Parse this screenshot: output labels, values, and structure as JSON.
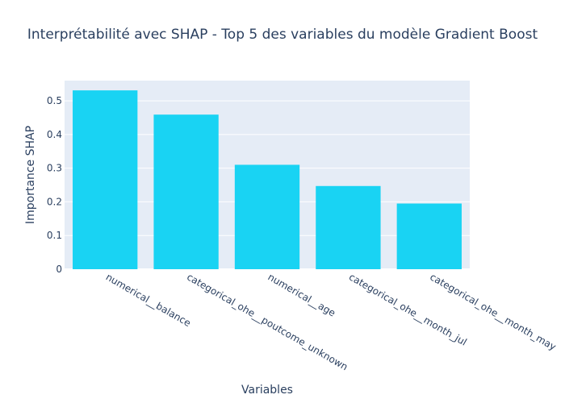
{
  "chart_data": {
    "type": "bar",
    "title": "Interprétabilité avec SHAP - Top 5 des variables du modèle Gradient Boost",
    "xlabel": "Variables",
    "ylabel": "Importance SHAP",
    "categories": [
      "numerical__balance",
      "categorical_ohe__poutcome_unknown",
      "numerical__age",
      "categorical_ohe__month_jul",
      "categorical_ohe__month_may"
    ],
    "values": [
      0.531,
      0.459,
      0.31,
      0.247,
      0.195
    ],
    "ylim": [
      0,
      0.56
    ],
    "yticks": [
      0,
      0.1,
      0.2,
      0.3,
      0.4,
      0.5
    ],
    "ytick_labels": [
      "0",
      "0.1",
      "0.2",
      "0.3",
      "0.4",
      "0.5"
    ],
    "grid": true,
    "colors": {
      "bar": "#19d3f3",
      "plot_background": "#e5ecf6",
      "gridline": "#ffffff",
      "text": "#2a3f5f"
    }
  }
}
